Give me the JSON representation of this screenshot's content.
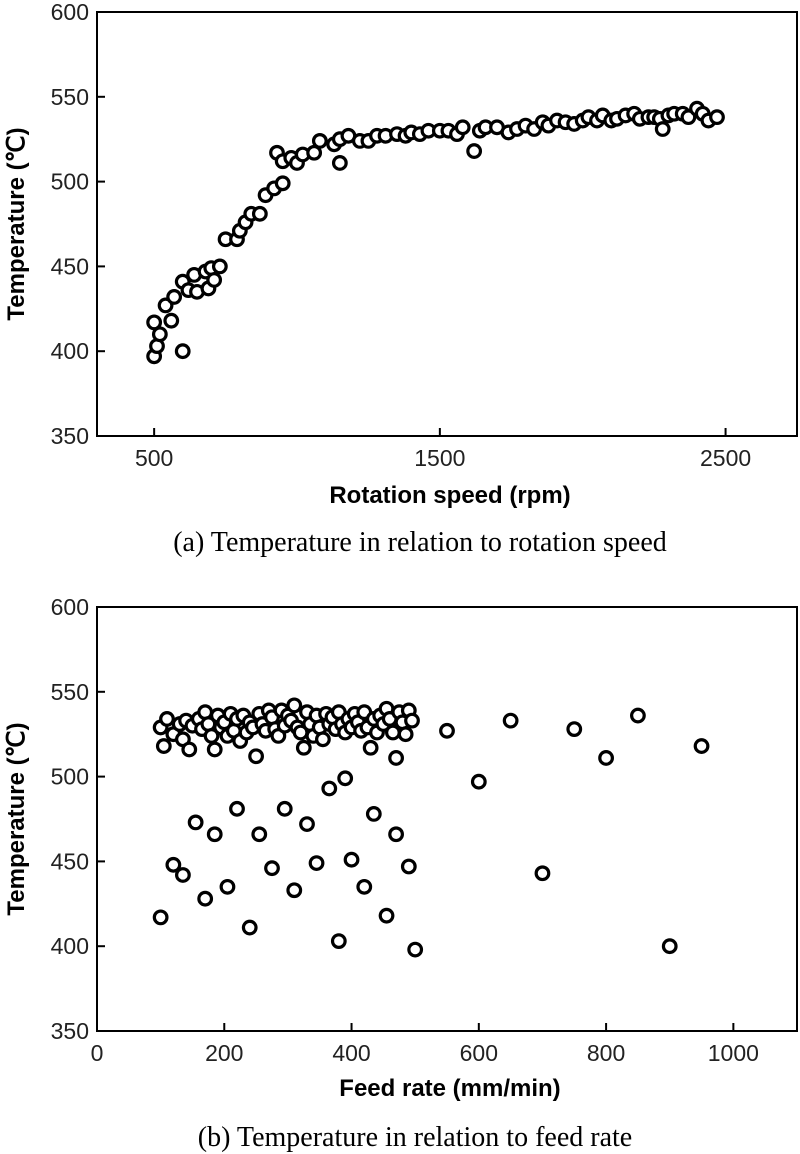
{
  "chart_data": [
    {
      "type": "scatter",
      "caption": "(a) Temperature in relation to rotation speed",
      "xlabel": "Rotation speed (rpm)",
      "ylabel": "Temperature (℃)",
      "xlim": [
        300,
        2750
      ],
      "ylim": [
        350,
        600
      ],
      "xticks": [
        500,
        1500,
        2500
      ],
      "yticks": [
        350,
        400,
        450,
        500,
        550,
        600
      ],
      "grid": false,
      "points": [
        [
          500,
          397
        ],
        [
          500,
          417
        ],
        [
          510,
          403
        ],
        [
          520,
          410
        ],
        [
          540,
          427
        ],
        [
          560,
          418
        ],
        [
          570,
          432
        ],
        [
          600,
          400
        ],
        [
          600,
          441
        ],
        [
          620,
          436
        ],
        [
          640,
          445
        ],
        [
          650,
          435
        ],
        [
          680,
          447
        ],
        [
          690,
          437
        ],
        [
          700,
          449
        ],
        [
          710,
          442
        ],
        [
          730,
          450
        ],
        [
          750,
          466
        ],
        [
          790,
          466
        ],
        [
          800,
          471
        ],
        [
          820,
          476
        ],
        [
          840,
          481
        ],
        [
          870,
          481
        ],
        [
          890,
          492
        ],
        [
          920,
          496
        ],
        [
          930,
          517
        ],
        [
          950,
          499
        ],
        [
          950,
          512
        ],
        [
          980,
          514
        ],
        [
          1000,
          511
        ],
        [
          1020,
          516
        ],
        [
          1060,
          517
        ],
        [
          1080,
          524
        ],
        [
          1130,
          522
        ],
        [
          1150,
          511
        ],
        [
          1150,
          525
        ],
        [
          1180,
          527
        ],
        [
          1220,
          524
        ],
        [
          1250,
          524
        ],
        [
          1280,
          527
        ],
        [
          1310,
          527
        ],
        [
          1350,
          528
        ],
        [
          1380,
          527
        ],
        [
          1400,
          529
        ],
        [
          1430,
          528
        ],
        [
          1460,
          530
        ],
        [
          1500,
          530
        ],
        [
          1530,
          530
        ],
        [
          1560,
          528
        ],
        [
          1580,
          532
        ],
        [
          1620,
          518
        ],
        [
          1640,
          530
        ],
        [
          1660,
          532
        ],
        [
          1700,
          532
        ],
        [
          1740,
          529
        ],
        [
          1770,
          531
        ],
        [
          1800,
          533
        ],
        [
          1830,
          531
        ],
        [
          1860,
          535
        ],
        [
          1880,
          533
        ],
        [
          1910,
          536
        ],
        [
          1940,
          535
        ],
        [
          1970,
          534
        ],
        [
          2000,
          536
        ],
        [
          2020,
          538
        ],
        [
          2050,
          536
        ],
        [
          2070,
          539
        ],
        [
          2100,
          536
        ],
        [
          2120,
          537
        ],
        [
          2150,
          539
        ],
        [
          2180,
          540
        ],
        [
          2200,
          537
        ],
        [
          2230,
          538
        ],
        [
          2250,
          538
        ],
        [
          2270,
          537
        ],
        [
          2280,
          531
        ],
        [
          2300,
          539
        ],
        [
          2320,
          540
        ],
        [
          2350,
          540
        ],
        [
          2370,
          538
        ],
        [
          2400,
          543
        ],
        [
          2420,
          540
        ],
        [
          2440,
          536
        ],
        [
          2470,
          538
        ]
      ]
    },
    {
      "type": "scatter",
      "caption": "(b) Temperature in relation to feed rate",
      "xlabel": "Feed rate (mm/min)",
      "ylabel": "Temperature (℃)",
      "xlim": [
        0,
        1100
      ],
      "ylim": [
        350,
        600
      ],
      "xticks": [
        0,
        200,
        400,
        600,
        800,
        1000
      ],
      "yticks": [
        350,
        400,
        450,
        500,
        550,
        600
      ],
      "grid": false,
      "points": [
        [
          100,
          529
        ],
        [
          105,
          518
        ],
        [
          110,
          534
        ],
        [
          120,
          525
        ],
        [
          130,
          531
        ],
        [
          135,
          522
        ],
        [
          140,
          533
        ],
        [
          145,
          516
        ],
        [
          150,
          530
        ],
        [
          160,
          534
        ],
        [
          165,
          528
        ],
        [
          170,
          538
        ],
        [
          175,
          531
        ],
        [
          180,
          524
        ],
        [
          185,
          516
        ],
        [
          190,
          536
        ],
        [
          195,
          529
        ],
        [
          200,
          532
        ],
        [
          205,
          524
        ],
        [
          210,
          537
        ],
        [
          215,
          527
        ],
        [
          220,
          534
        ],
        [
          225,
          521
        ],
        [
          230,
          536
        ],
        [
          235,
          526
        ],
        [
          240,
          532
        ],
        [
          245,
          529
        ],
        [
          250,
          512
        ],
        [
          255,
          537
        ],
        [
          260,
          531
        ],
        [
          265,
          527
        ],
        [
          270,
          539
        ],
        [
          275,
          535
        ],
        [
          280,
          528
        ],
        [
          285,
          524
        ],
        [
          290,
          539
        ],
        [
          295,
          530
        ],
        [
          300,
          536
        ],
        [
          305,
          533
        ],
        [
          310,
          542
        ],
        [
          315,
          529
        ],
        [
          320,
          526
        ],
        [
          325,
          517
        ],
        [
          330,
          538
        ],
        [
          335,
          531
        ],
        [
          340,
          524
        ],
        [
          345,
          536
        ],
        [
          350,
          529
        ],
        [
          355,
          522
        ],
        [
          360,
          537
        ],
        [
          365,
          531
        ],
        [
          370,
          535
        ],
        [
          375,
          528
        ],
        [
          380,
          538
        ],
        [
          385,
          531
        ],
        [
          390,
          526
        ],
        [
          395,
          534
        ],
        [
          400,
          529
        ],
        [
          405,
          537
        ],
        [
          410,
          532
        ],
        [
          415,
          527
        ],
        [
          420,
          538
        ],
        [
          425,
          529
        ],
        [
          430,
          517
        ],
        [
          435,
          534
        ],
        [
          440,
          526
        ],
        [
          445,
          536
        ],
        [
          450,
          531
        ],
        [
          455,
          540
        ],
        [
          460,
          534
        ],
        [
          465,
          526
        ],
        [
          470,
          511
        ],
        [
          475,
          538
        ],
        [
          480,
          532
        ],
        [
          485,
          525
        ],
        [
          490,
          539
        ],
        [
          495,
          533
        ],
        [
          100,
          417
        ],
        [
          120,
          448
        ],
        [
          135,
          442
        ],
        [
          155,
          473
        ],
        [
          170,
          428
        ],
        [
          185,
          466
        ],
        [
          205,
          435
        ],
        [
          220,
          481
        ],
        [
          240,
          411
        ],
        [
          255,
          466
        ],
        [
          275,
          446
        ],
        [
          295,
          481
        ],
        [
          310,
          433
        ],
        [
          330,
          472
        ],
        [
          345,
          449
        ],
        [
          365,
          493
        ],
        [
          380,
          403
        ],
        [
          390,
          499
        ],
        [
          400,
          451
        ],
        [
          420,
          435
        ],
        [
          435,
          478
        ],
        [
          455,
          418
        ],
        [
          470,
          466
        ],
        [
          490,
          447
        ],
        [
          500,
          398
        ],
        [
          550,
          527
        ],
        [
          600,
          497
        ],
        [
          650,
          533
        ],
        [
          700,
          443
        ],
        [
          750,
          528
        ],
        [
          800,
          511
        ],
        [
          850,
          536
        ],
        [
          900,
          400
        ],
        [
          950,
          518
        ]
      ]
    }
  ]
}
